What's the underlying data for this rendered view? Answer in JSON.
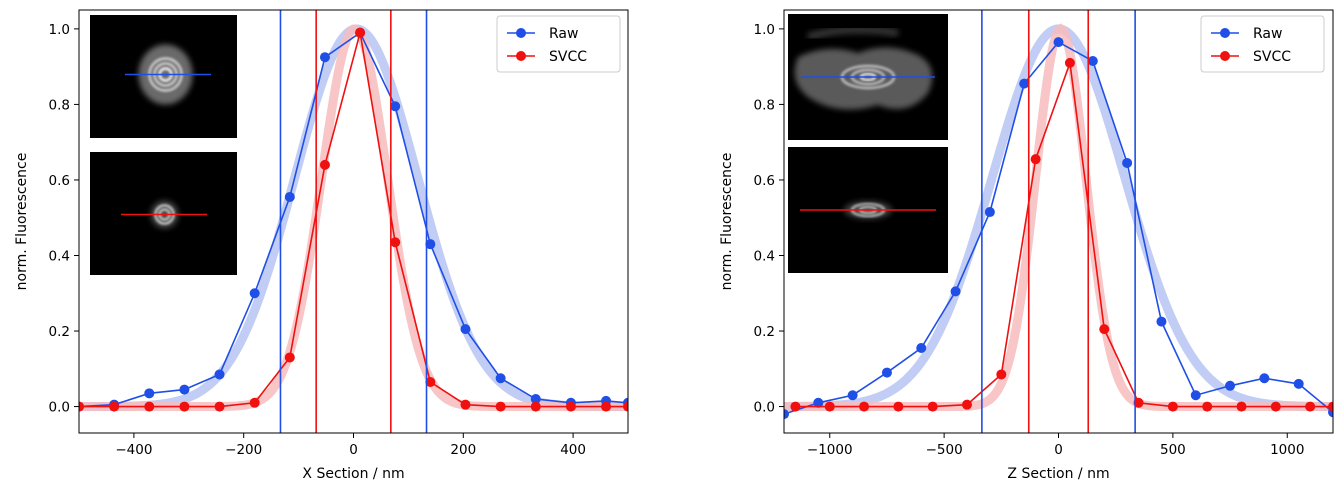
{
  "chart_data": [
    {
      "type": "line",
      "xlabel": "X Section / nm",
      "ylabel": "norm. Fluorescence",
      "xlim": [
        -500,
        500
      ],
      "ylim": [
        -0.07,
        1.05
      ],
      "xticks": [
        -400,
        -200,
        0,
        200,
        400
      ],
      "yticks": [
        0.0,
        0.2,
        0.4,
        0.6,
        0.8,
        1.0
      ],
      "xticklabels": [
        "−400",
        "−200",
        "0",
        "200",
        "400"
      ],
      "yticklabels": [
        "0.0",
        "0.2",
        "0.4",
        "0.6",
        "0.8",
        "1.0"
      ],
      "legend_position": "top-right",
      "series": [
        {
          "name": "Raw",
          "color": "#1f4fe6",
          "x": [
            -500,
            -436,
            -372,
            -308,
            -244,
            -180,
            -116,
            -52,
            12,
            76,
            140,
            204,
            268,
            332,
            396,
            460,
            500
          ],
          "y": [
            0.0,
            0.005,
            0.035,
            0.045,
            0.085,
            0.3,
            0.555,
            0.925,
            0.99,
            0.795,
            0.43,
            0.205,
            0.075,
            0.02,
            0.01,
            0.015,
            0.01
          ]
        },
        {
          "name": "SVCC",
          "color": "#f01010",
          "x": [
            -500,
            -436,
            -372,
            -308,
            -244,
            -180,
            -116,
            -52,
            12,
            76,
            140,
            204,
            268,
            332,
            396,
            460,
            500
          ],
          "y": [
            0.0,
            0.0,
            0.0,
            0.0,
            0.0,
            0.01,
            0.13,
            0.64,
            0.99,
            0.435,
            0.065,
            0.005,
            0.0,
            0.0,
            0.0,
            0.0,
            0.0
          ]
        }
      ],
      "fits": [
        {
          "series": "Raw",
          "center": 5,
          "sigma": 112,
          "color": "#b6c4f2"
        },
        {
          "series": "SVCC",
          "center": 2,
          "sigma": 60,
          "color": "#f7bcbc"
        }
      ],
      "vlines": [
        {
          "x": -133,
          "color": "#1f4fe6"
        },
        {
          "x": 133,
          "color": "#1f4fe6"
        },
        {
          "x": -68,
          "color": "#f01010"
        },
        {
          "x": 68,
          "color": "#f01010"
        }
      ],
      "insets": [
        {
          "line_color": "#1f4fe6",
          "kind": "raw-spot"
        },
        {
          "line_color": "#f01010",
          "kind": "svcc-spot"
        }
      ]
    },
    {
      "type": "line",
      "xlabel": "Z Section / nm",
      "ylabel": "norm. Fluorescence",
      "xlim": [
        -1200,
        1200
      ],
      "ylim": [
        -0.07,
        1.05
      ],
      "xticks": [
        -1000,
        -500,
        0,
        500,
        1000
      ],
      "yticks": [
        0.0,
        0.2,
        0.4,
        0.6,
        0.8,
        1.0
      ],
      "xticklabels": [
        "−1000",
        "−500",
        "0",
        "500",
        "1000"
      ],
      "yticklabels": [
        "0.0",
        "0.2",
        "0.4",
        "0.6",
        "0.8",
        "1.0"
      ],
      "legend_position": "top-right",
      "series": [
        {
          "name": "Raw",
          "color": "#1f4fe6",
          "x": [
            -1200,
            -1050,
            -900,
            -750,
            -600,
            -450,
            -300,
            -150,
            0,
            150,
            300,
            450,
            600,
            750,
            900,
            1050,
            1200
          ],
          "y": [
            -0.02,
            0.01,
            0.03,
            0.09,
            0.155,
            0.305,
            0.515,
            0.855,
            0.965,
            0.915,
            0.645,
            0.225,
            0.03,
            0.055,
            0.075,
            0.06,
            -0.015
          ]
        },
        {
          "name": "SVCC",
          "color": "#f01010",
          "x": [
            -1150,
            -1000,
            -850,
            -700,
            -550,
            -400,
            -250,
            -100,
            50,
            200,
            350,
            500,
            650,
            800,
            950,
            1100,
            1200
          ],
          "y": [
            0.0,
            0.0,
            0.0,
            0.0,
            0.0,
            0.005,
            0.085,
            0.655,
            0.91,
            0.205,
            0.01,
            0.0,
            0.0,
            0.0,
            0.0,
            0.0,
            0.0
          ]
        }
      ],
      "fits": [
        {
          "series": "Raw",
          "center": 0,
          "sigma": 290,
          "color": "#b6c4f2"
        },
        {
          "series": "SVCC",
          "center": 10,
          "sigma": 110,
          "color": "#f7bcbc"
        }
      ],
      "vlines": [
        {
          "x": -335,
          "color": "#1f4fe6"
        },
        {
          "x": 335,
          "color": "#1f4fe6"
        },
        {
          "x": -130,
          "color": "#f01010"
        },
        {
          "x": 130,
          "color": "#f01010"
        }
      ],
      "insets": [
        {
          "line_color": "#1f4fe6",
          "kind": "raw-blob"
        },
        {
          "line_color": "#f01010",
          "kind": "svcc-ellipse"
        }
      ]
    }
  ]
}
